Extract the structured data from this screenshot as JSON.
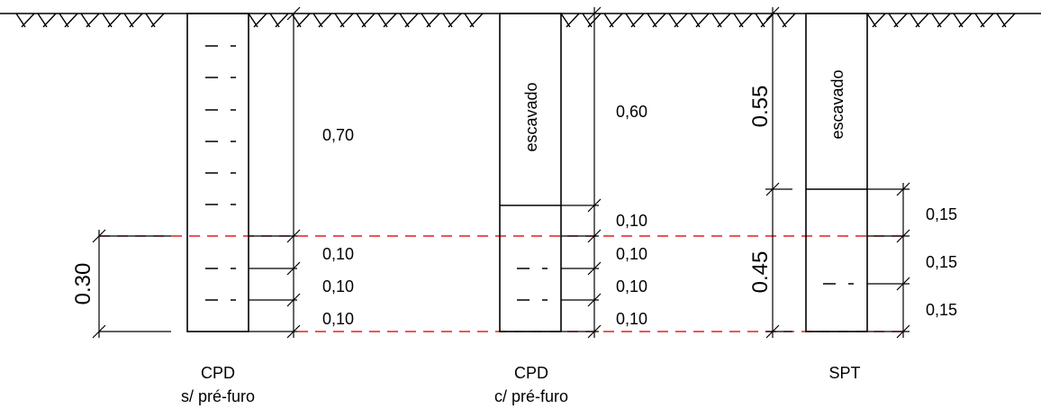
{
  "cpd_sem": {
    "caption_line1": "CPD",
    "caption_line2": "s/ pré-furo",
    "dim_total": "0.30",
    "dim_upper": "0,70",
    "dim_seg1": "0,10",
    "dim_seg2": "0,10",
    "dim_seg3": "0,10"
  },
  "cpd_com": {
    "caption_line1": "CPD",
    "caption_line2": "c/ pré-furo",
    "excavated_label": "escavado",
    "dim_excavated": "0,60",
    "dim_seg1": "0,10",
    "dim_seg2": "0,10",
    "dim_seg3": "0,10",
    "dim_seg4": "0,10"
  },
  "spt": {
    "caption": "SPT",
    "excavated_label": "escavado",
    "dim_excavated": "0.55",
    "dim_test": "0.45",
    "dim_seg1": "0,15",
    "dim_seg2": "0,15",
    "dim_seg3": "0,15"
  },
  "colors": {
    "lines": "#000000",
    "reference_lines": "#e31e24"
  }
}
